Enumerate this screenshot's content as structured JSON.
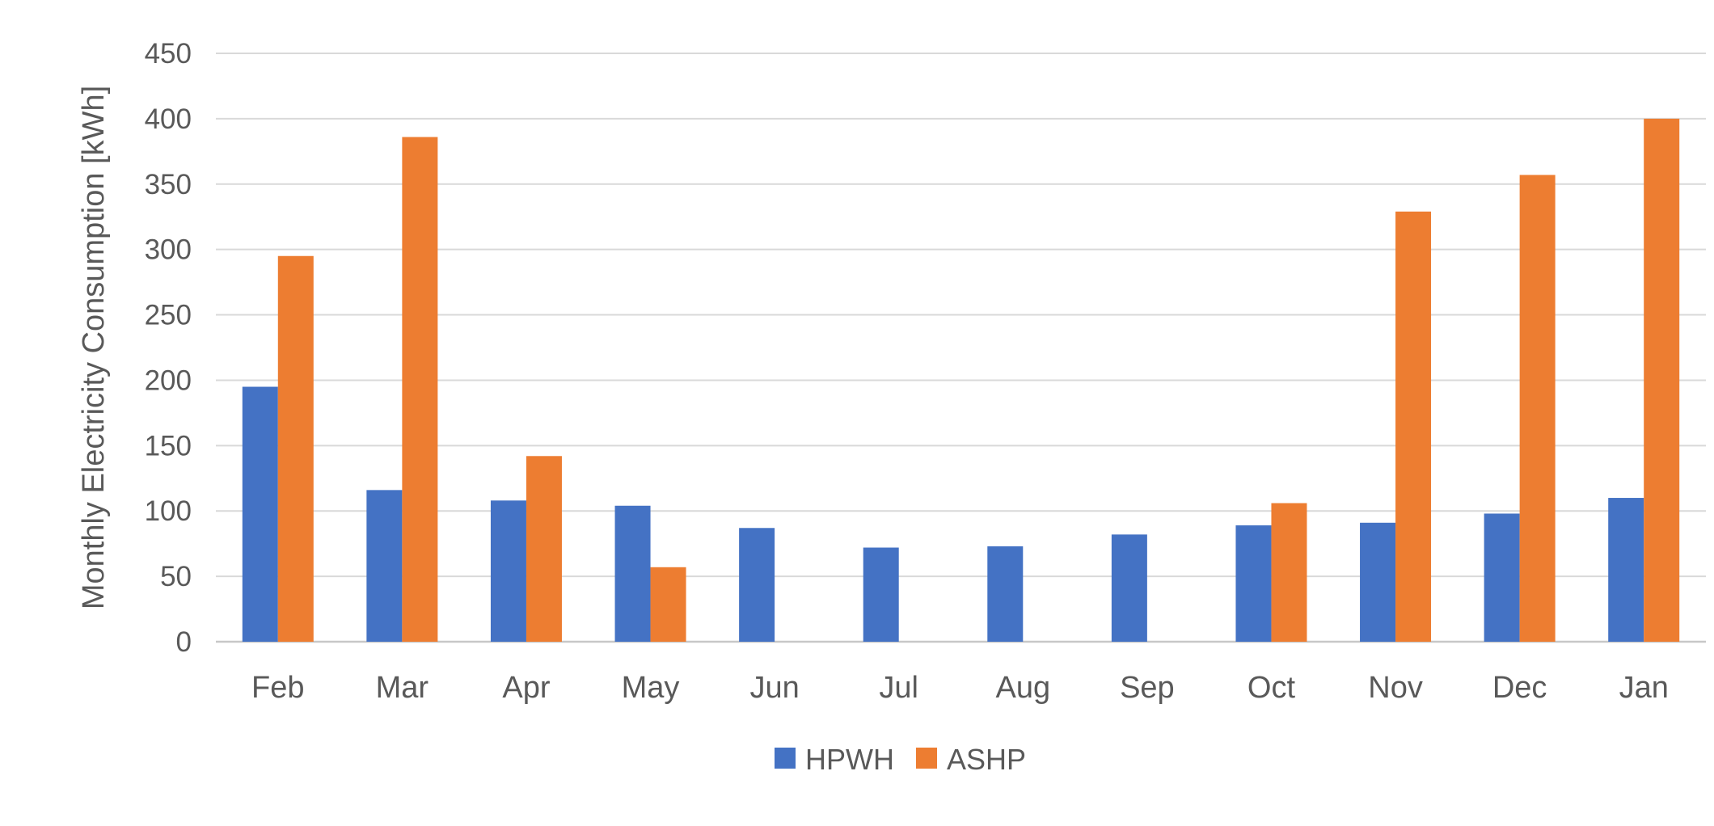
{
  "chart_data": {
    "type": "bar",
    "title": "",
    "xlabel": "",
    "ylabel": "Monthly Electricity Consumption [kWh]",
    "categories": [
      "Feb",
      "Mar",
      "Apr",
      "May",
      "Jun",
      "Jul",
      "Aug",
      "Sep",
      "Oct",
      "Nov",
      "Dec",
      "Jan"
    ],
    "series": [
      {
        "name": "HPWH",
        "color": "#4472C4",
        "values": [
          195,
          116,
          108,
          104,
          87,
          72,
          73,
          82,
          89,
          91,
          98,
          110
        ]
      },
      {
        "name": "ASHP",
        "color": "#ED7D31",
        "values": [
          295,
          386,
          142,
          57,
          0,
          0,
          0,
          0,
          106,
          329,
          357,
          400
        ]
      }
    ],
    "ylim": [
      0,
      450
    ],
    "ytick_step": 50,
    "yticks": [
      0,
      50,
      100,
      150,
      200,
      250,
      300,
      350,
      400,
      450
    ],
    "grid": "horizontal-only",
    "legend_position": "bottom-center"
  },
  "styles": {
    "background": "#FFFFFF",
    "grid_color": "#D9D9D9",
    "axis_line_color": "#C8C8C8",
    "text_color": "#595959"
  }
}
